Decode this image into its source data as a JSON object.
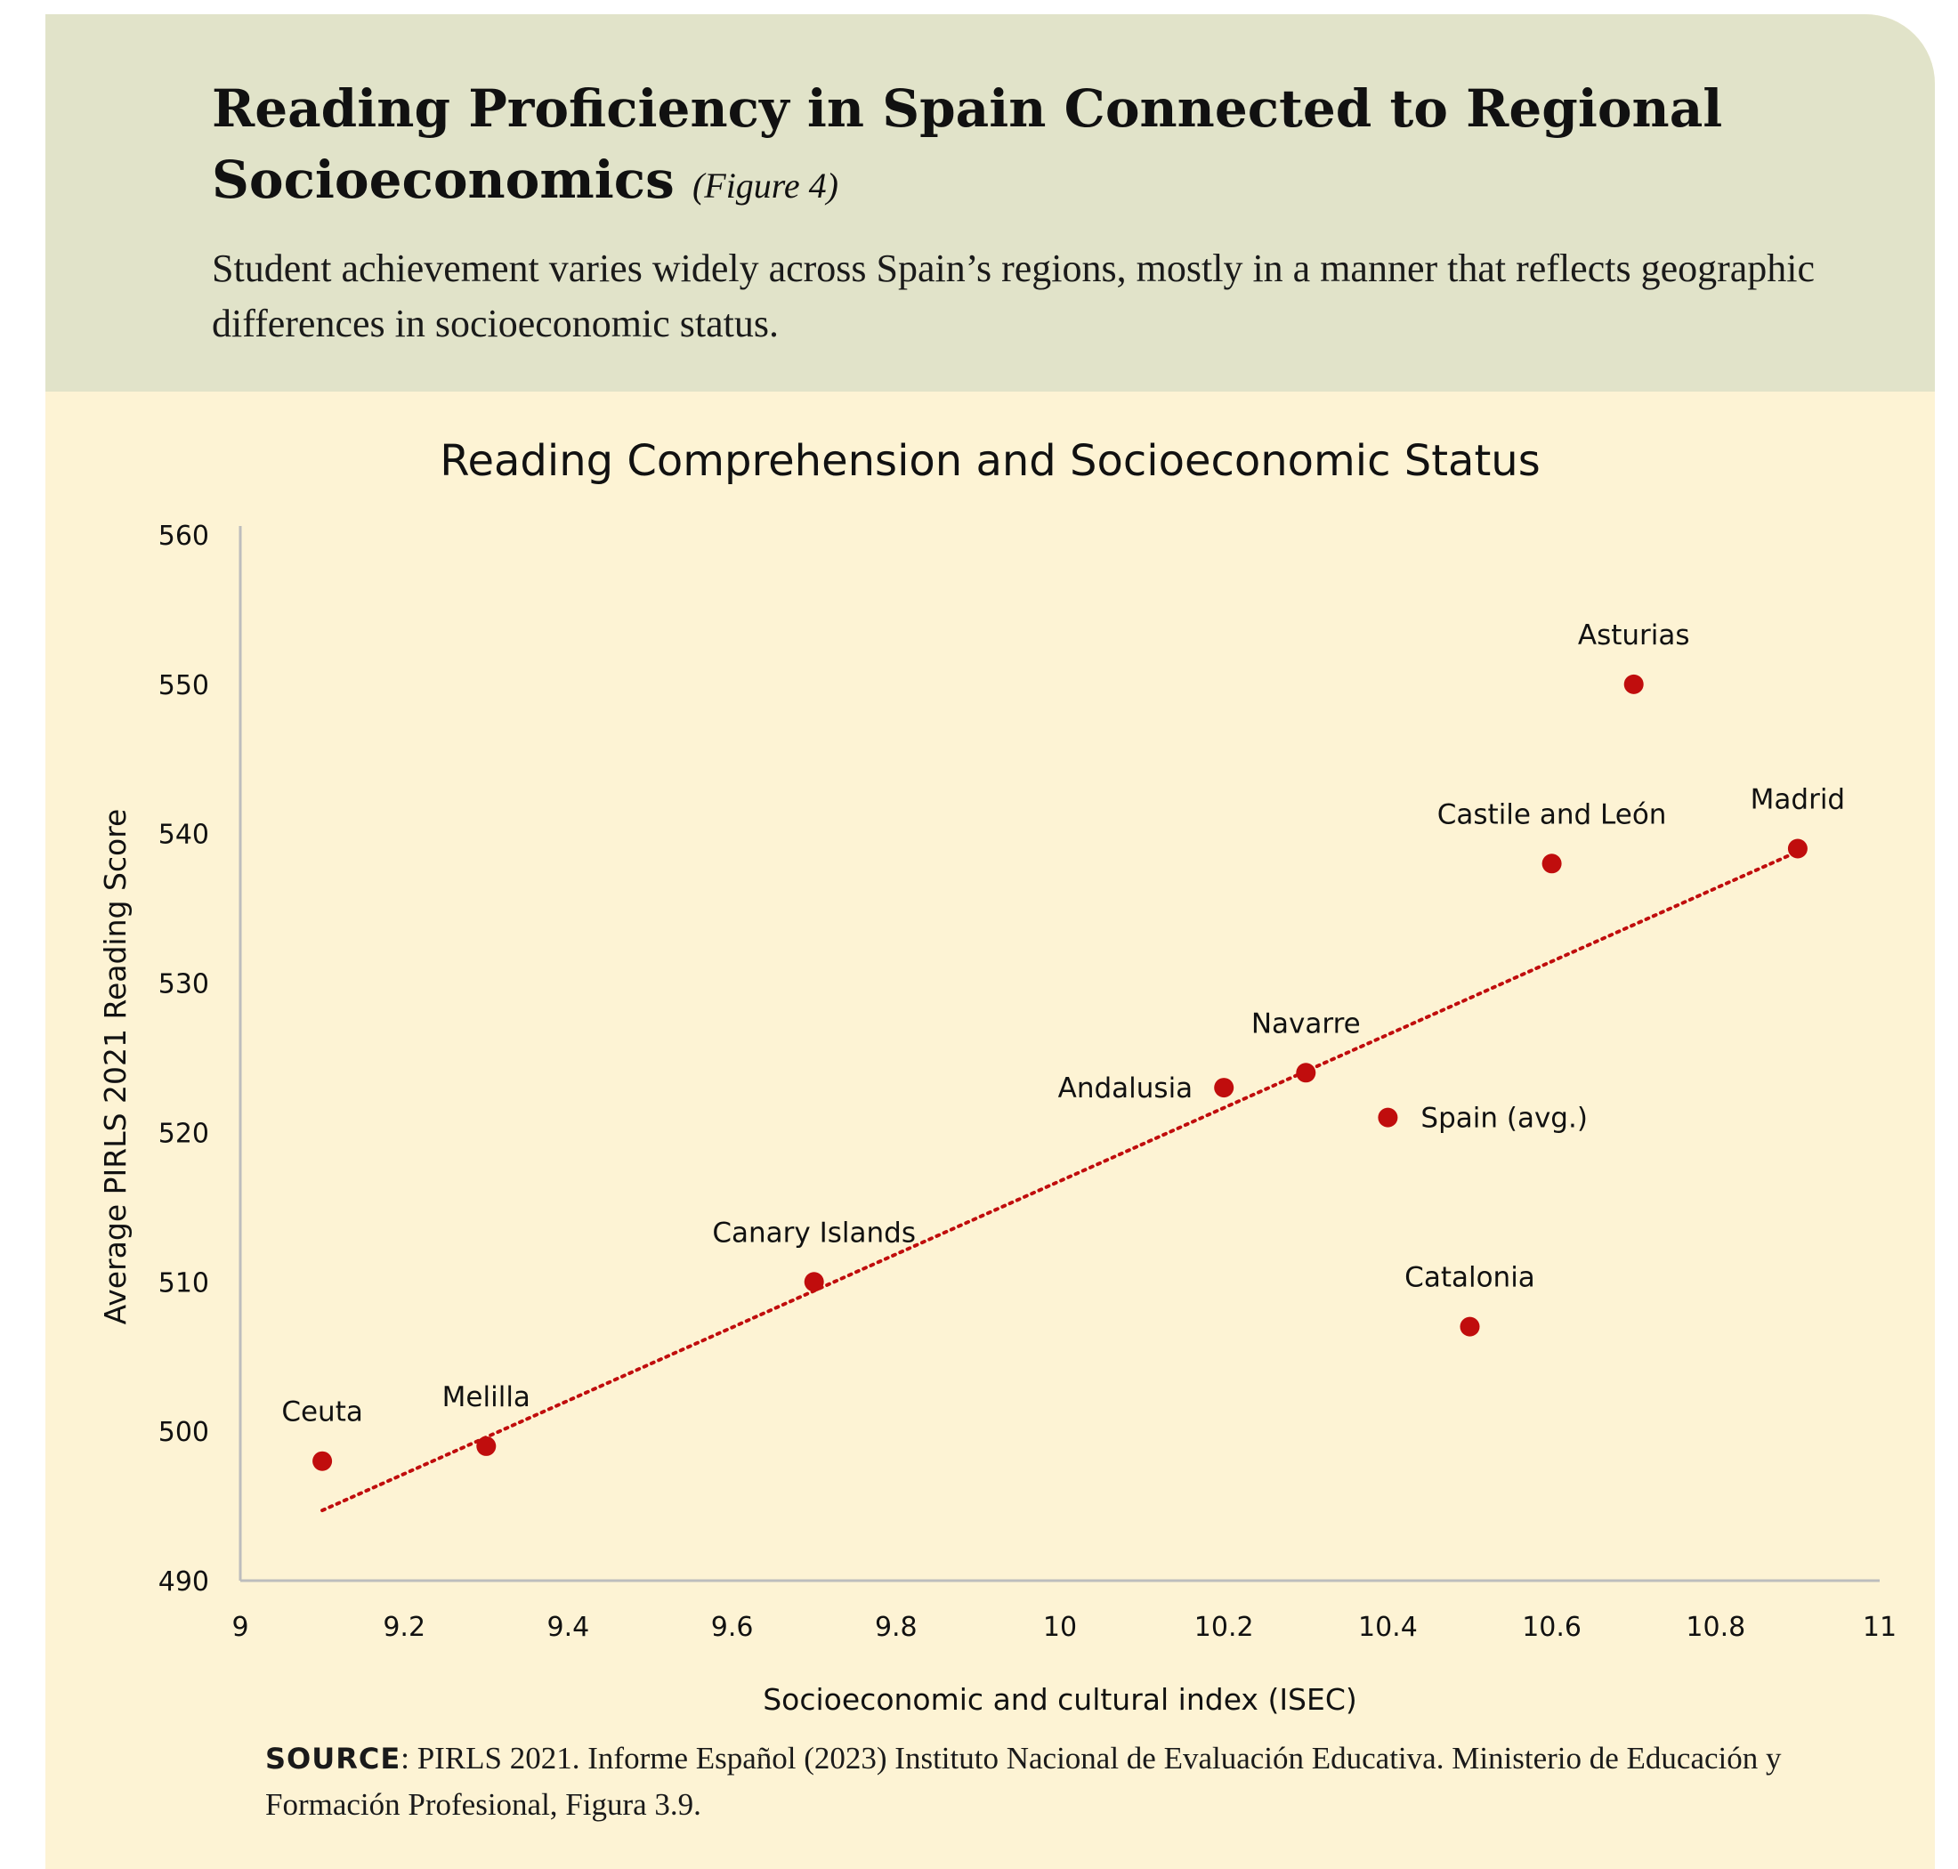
{
  "header": {
    "title": "Reading Proficiency in Spain Connected to Regional Socioeconomics",
    "figure_tag": "(Figure 4)",
    "subtitle": "Student achievement varies widely across Spain’s regions, mostly in a manner that reflects geographic differences in socioeconomic status."
  },
  "source": {
    "label": "SOURCE",
    "text": ": PIRLS 2021. Informe Español (2023) Instituto Nacional de Evaluación Educativa. Ministerio de Educación y Formación Profesional, Figura 3.9."
  },
  "colors": {
    "header_bg": "#e1e3c9",
    "card_bg": "#fdf3d4",
    "point": "#c00d0d",
    "trend": "#c00d0d",
    "axis": "#bdbdbd"
  },
  "chart_data": {
    "type": "scatter",
    "title": "Reading Comprehension and Socioeconomic Status",
    "xlabel": "Socioeconomic and cultural index (ISEC)",
    "ylabel": "Average PIRLS 2021 Reading Score",
    "xlim": [
      9,
      11
    ],
    "ylim": [
      490,
      560
    ],
    "xticks": [
      "9",
      "9.2",
      "9.4",
      "9.6",
      "9.8",
      "10",
      "10.2",
      "10.4",
      "10.6",
      "10.8",
      "11"
    ],
    "yticks": [
      "490",
      "500",
      "510",
      "520",
      "530",
      "540",
      "550",
      "560"
    ],
    "grid": false,
    "points": [
      {
        "label": "Ceuta",
        "x": 9.1,
        "y": 498,
        "label_pos": "above"
      },
      {
        "label": "Melilla",
        "x": 9.3,
        "y": 499,
        "label_pos": "above"
      },
      {
        "label": "Canary Islands",
        "x": 9.7,
        "y": 510,
        "label_pos": "above"
      },
      {
        "label": "Andalusia",
        "x": 10.2,
        "y": 523,
        "label_pos": "left"
      },
      {
        "label": "Navarre",
        "x": 10.3,
        "y": 524,
        "label_pos": "above"
      },
      {
        "label": "Spain (avg.)",
        "x": 10.4,
        "y": 521,
        "label_pos": "right"
      },
      {
        "label": "Catalonia",
        "x": 10.5,
        "y": 507,
        "label_pos": "above"
      },
      {
        "label": "Castile and León",
        "x": 10.6,
        "y": 538,
        "label_pos": "above"
      },
      {
        "label": "Asturias",
        "x": 10.7,
        "y": 550,
        "label_pos": "above"
      },
      {
        "label": "Madrid",
        "x": 10.9,
        "y": 539,
        "label_pos": "above"
      }
    ],
    "trendline": {
      "style": "dotted",
      "x": [
        9.1,
        10.9
      ],
      "y": [
        494.7,
        538.8
      ]
    }
  }
}
